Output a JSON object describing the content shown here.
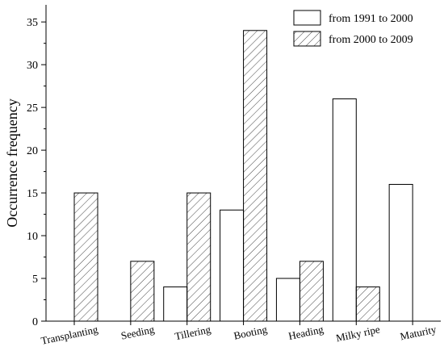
{
  "chart_data": {
    "type": "bar",
    "title": "",
    "xlabel": "",
    "ylabel": "Occurrence frequency",
    "ylim": [
      0,
      37
    ],
    "yticks": [
      0,
      5,
      10,
      15,
      20,
      25,
      30,
      35
    ],
    "grid": false,
    "legend_position": "top-right",
    "categories": [
      "Transplanting",
      "Seeding",
      "Tillering",
      "Booting",
      "Heading",
      "Milky ripe",
      "Maturity"
    ],
    "series": [
      {
        "name": "from 1991 to 2000",
        "pattern": "none",
        "values": [
          0,
          0,
          4,
          13,
          5,
          26,
          16
        ]
      },
      {
        "name": "from 2000 to 2009",
        "pattern": "hatched",
        "values": [
          15,
          7,
          15,
          34,
          7,
          4,
          0
        ]
      }
    ]
  }
}
